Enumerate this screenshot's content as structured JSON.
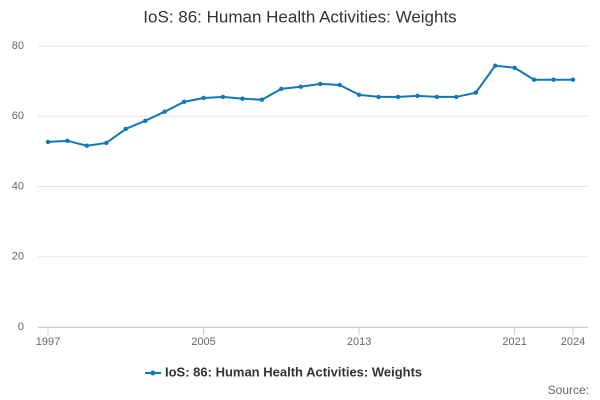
{
  "chart_data": {
    "type": "line",
    "title": "IoS: 86: Human Health Activities: Weights",
    "x": [
      1997,
      1998,
      1999,
      2000,
      2001,
      2002,
      2003,
      2004,
      2005,
      2006,
      2007,
      2008,
      2009,
      2010,
      2011,
      2012,
      2013,
      2014,
      2015,
      2016,
      2017,
      2018,
      2019,
      2020,
      2021,
      2022,
      2023,
      2024
    ],
    "series": [
      {
        "name": "IoS: 86: Human Health Activities: Weights",
        "color": "#0f78b6",
        "values": [
          52.7,
          53.0,
          51.6,
          52.4,
          56.4,
          58.7,
          61.3,
          64.1,
          65.2,
          65.5,
          65.0,
          64.7,
          67.8,
          68.4,
          69.2,
          68.9,
          66.1,
          65.5,
          65.5,
          65.8,
          65.5,
          65.5,
          66.7,
          74.4,
          73.8,
          70.4,
          70.4,
          70.4
        ]
      }
    ],
    "xlim": [
      1997,
      2024
    ],
    "xticks": [
      1997,
      2005,
      2013,
      2021,
      2024
    ],
    "ylim": [
      0,
      80
    ],
    "yticks": [
      0,
      20,
      40,
      60,
      80
    ],
    "grid": true,
    "legend": "bottom",
    "source": "Source:"
  }
}
